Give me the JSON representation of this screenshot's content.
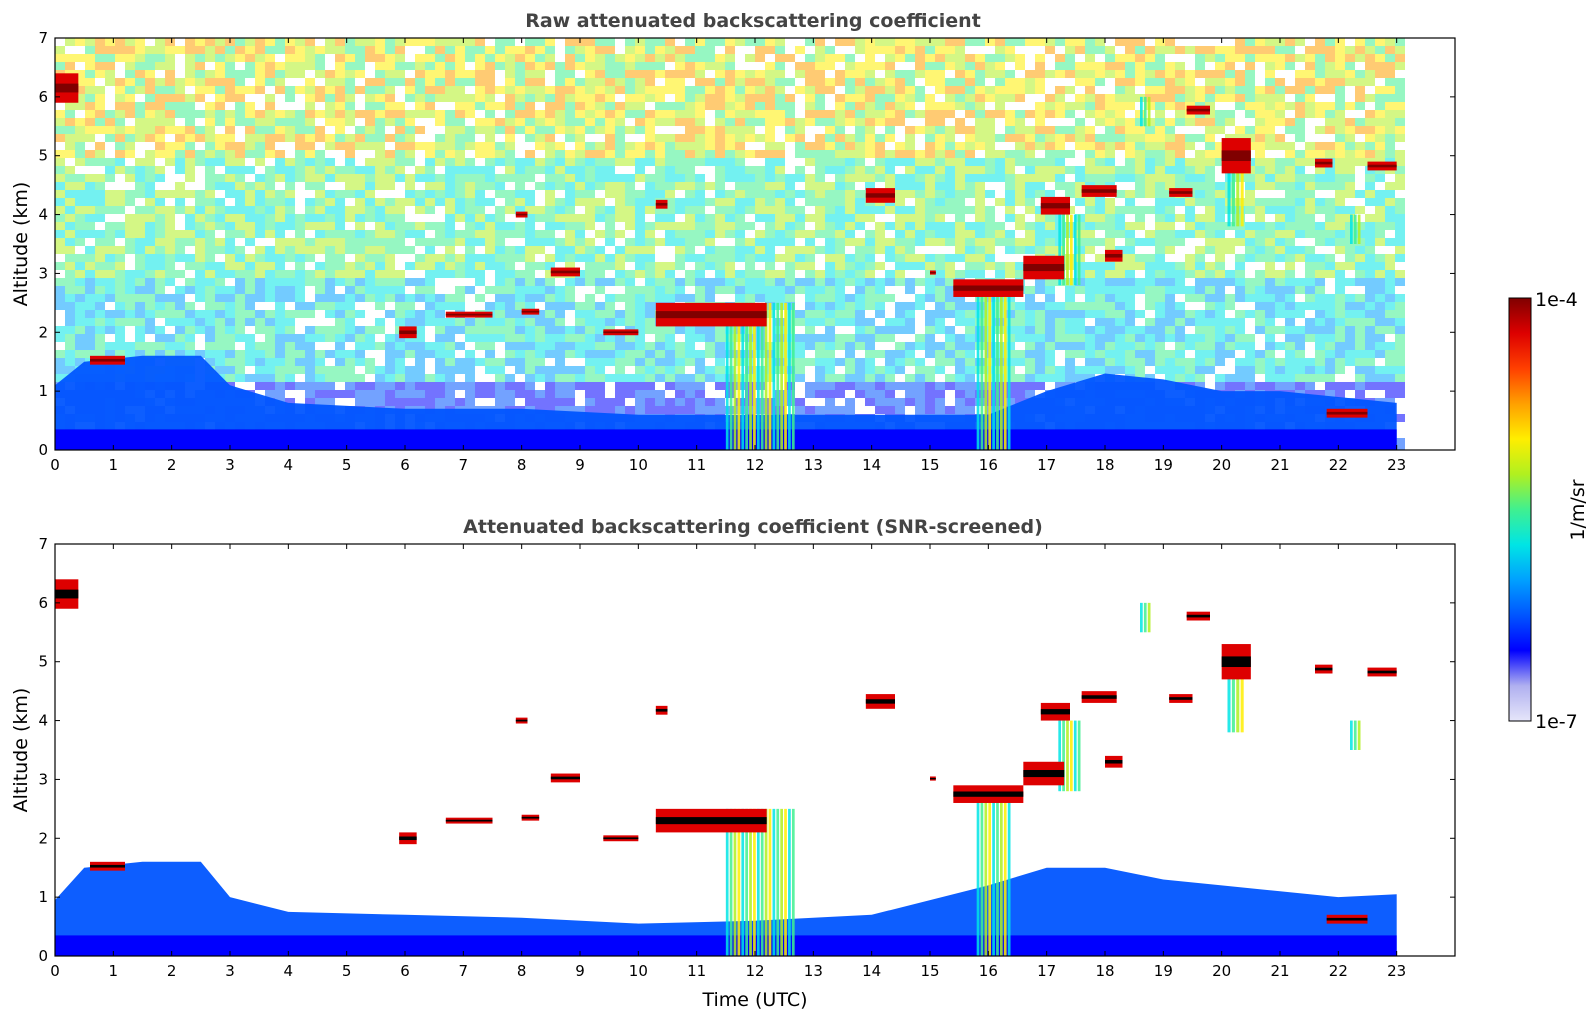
{
  "colors": {
    "colormap": [
      "#e6e6fa",
      "#b0b0f0",
      "#0000ff",
      "#0055ff",
      "#00a0ff",
      "#00e5e5",
      "#40f090",
      "#b0f020",
      "#ffee00",
      "#ffa000",
      "#ff4000",
      "#dd0000",
      "#800000"
    ],
    "background": "#ffffff",
    "frame": "#000000",
    "title": "#444444"
  },
  "colorbar": {
    "max_label": "1e-4",
    "min_label": "1e-7",
    "unit_label": "1/m/sr",
    "scale": "log"
  },
  "chart_data": [
    {
      "type": "heatmap",
      "title": "Raw attenuated backscattering coefficient",
      "xlabel": "",
      "ylabel": "Altitude (km)",
      "xlim": [
        0,
        24
      ],
      "ylim": [
        0,
        7
      ],
      "xticks": [
        "0",
        "1",
        "2",
        "3",
        "4",
        "5",
        "6",
        "7",
        "8",
        "9",
        "10",
        "11",
        "12",
        "13",
        "14",
        "15",
        "16",
        "17",
        "18",
        "19",
        "20",
        "21",
        "22",
        "23"
      ],
      "yticks": [
        "0",
        "1",
        "2",
        "3",
        "4",
        "5",
        "6",
        "7"
      ],
      "data_x_range": [
        0,
        23
      ],
      "screened": false,
      "boundary_layer_top": [
        [
          0,
          1.1
        ],
        [
          0.5,
          1.5
        ],
        [
          1.5,
          1.6
        ],
        [
          2.5,
          1.6
        ],
        [
          3,
          1.1
        ],
        [
          4,
          0.8
        ],
        [
          6,
          0.7
        ],
        [
          8,
          0.7
        ],
        [
          10,
          0.6
        ],
        [
          12,
          0.6
        ],
        [
          14,
          0.6
        ],
        [
          16,
          0.6
        ],
        [
          17,
          1.0
        ],
        [
          18,
          1.3
        ],
        [
          19,
          1.2
        ],
        [
          20,
          1.0
        ],
        [
          21,
          1.0
        ],
        [
          22,
          0.9
        ],
        [
          23,
          0.8
        ]
      ],
      "cloud_layers": [
        {
          "x": [
            0.0,
            0.4
          ],
          "y": [
            5.9,
            6.4
          ]
        },
        {
          "x": [
            0.6,
            1.2
          ],
          "y": [
            1.45,
            1.6
          ]
        },
        {
          "x": [
            5.9,
            6.2
          ],
          "y": [
            1.9,
            2.1
          ]
        },
        {
          "x": [
            6.7,
            7.5
          ],
          "y": [
            2.25,
            2.35
          ]
        },
        {
          "x": [
            8.0,
            8.3
          ],
          "y": [
            2.3,
            2.4
          ]
        },
        {
          "x": [
            7.9,
            8.1
          ],
          "y": [
            3.95,
            4.05
          ]
        },
        {
          "x": [
            8.5,
            9.0
          ],
          "y": [
            2.95,
            3.1
          ]
        },
        {
          "x": [
            9.4,
            10.0
          ],
          "y": [
            1.95,
            2.05
          ]
        },
        {
          "x": [
            10.3,
            10.5
          ],
          "y": [
            4.1,
            4.25
          ]
        },
        {
          "x": [
            10.3,
            12.2
          ],
          "y": [
            2.1,
            2.5
          ]
        },
        {
          "x": [
            13.9,
            14.4
          ],
          "y": [
            4.2,
            4.45
          ]
        },
        {
          "x": [
            15.0,
            15.1
          ],
          "y": [
            2.98,
            3.05
          ]
        },
        {
          "x": [
            15.4,
            16.6
          ],
          "y": [
            2.6,
            2.9
          ]
        },
        {
          "x": [
            16.6,
            17.3
          ],
          "y": [
            2.9,
            3.3
          ]
        },
        {
          "x": [
            16.9,
            17.4
          ],
          "y": [
            4.0,
            4.3
          ]
        },
        {
          "x": [
            17.6,
            18.2
          ],
          "y": [
            4.3,
            4.5
          ]
        },
        {
          "x": [
            18.0,
            18.3
          ],
          "y": [
            3.2,
            3.4
          ]
        },
        {
          "x": [
            19.1,
            19.5
          ],
          "y": [
            4.3,
            4.45
          ]
        },
        {
          "x": [
            19.4,
            19.8
          ],
          "y": [
            5.7,
            5.85
          ]
        },
        {
          "x": [
            20.0,
            20.5
          ],
          "y": [
            4.7,
            5.3
          ]
        },
        {
          "x": [
            21.6,
            21.9
          ],
          "y": [
            4.8,
            4.95
          ]
        },
        {
          "x": [
            22.5,
            23.0
          ],
          "y": [
            4.75,
            4.9
          ]
        },
        {
          "x": [
            21.8,
            22.5
          ],
          "y": [
            0.55,
            0.7
          ]
        }
      ],
      "fall_streaks": [
        {
          "x": [
            11.5,
            12.7
          ],
          "y": [
            0,
            2.5
          ]
        },
        {
          "x": [
            15.8,
            16.4
          ],
          "y": [
            0,
            2.8
          ]
        },
        {
          "x": [
            17.2,
            17.6
          ],
          "y": [
            2.8,
            4.0
          ]
        },
        {
          "x": [
            20.1,
            20.4
          ],
          "y": [
            3.8,
            4.8
          ]
        },
        {
          "x": [
            22.2,
            22.4
          ],
          "y": [
            3.5,
            4.0
          ]
        },
        {
          "x": [
            18.6,
            18.8
          ],
          "y": [
            5.5,
            6.0
          ]
        }
      ]
    },
    {
      "type": "heatmap",
      "title": "Attenuated backscattering coefficient (SNR-screened)",
      "xlabel": "Time (UTC)",
      "ylabel": "Altitude (km)",
      "xlim": [
        0,
        24
      ],
      "ylim": [
        0,
        7
      ],
      "xticks": [
        "0",
        "1",
        "2",
        "3",
        "4",
        "5",
        "6",
        "7",
        "8",
        "9",
        "10",
        "11",
        "12",
        "13",
        "14",
        "15",
        "16",
        "17",
        "18",
        "19",
        "20",
        "21",
        "22",
        "23"
      ],
      "yticks": [
        "0",
        "1",
        "2",
        "3",
        "4",
        "5",
        "6",
        "7"
      ],
      "data_x_range": [
        0,
        23
      ],
      "screened": true,
      "boundary_layer_top": [
        [
          0,
          0.95
        ],
        [
          0.5,
          1.5
        ],
        [
          1.5,
          1.6
        ],
        [
          2.5,
          1.6
        ],
        [
          3,
          1.0
        ],
        [
          4,
          0.75
        ],
        [
          6,
          0.7
        ],
        [
          8,
          0.65
        ],
        [
          10,
          0.55
        ],
        [
          12,
          0.6
        ],
        [
          14,
          0.7
        ],
        [
          16,
          1.2
        ],
        [
          17,
          1.5
        ],
        [
          18,
          1.5
        ],
        [
          19,
          1.3
        ],
        [
          20,
          1.2
        ],
        [
          21,
          1.1
        ],
        [
          22,
          1.0
        ],
        [
          23,
          1.05
        ]
      ],
      "cloud_layers": [
        {
          "x": [
            0.0,
            0.4
          ],
          "y": [
            5.9,
            6.4
          ]
        },
        {
          "x": [
            0.6,
            1.2
          ],
          "y": [
            1.45,
            1.6
          ]
        },
        {
          "x": [
            5.9,
            6.2
          ],
          "y": [
            1.9,
            2.1
          ]
        },
        {
          "x": [
            6.7,
            7.5
          ],
          "y": [
            2.25,
            2.35
          ]
        },
        {
          "x": [
            8.0,
            8.3
          ],
          "y": [
            2.3,
            2.4
          ]
        },
        {
          "x": [
            7.9,
            8.1
          ],
          "y": [
            3.95,
            4.05
          ]
        },
        {
          "x": [
            8.5,
            9.0
          ],
          "y": [
            2.95,
            3.1
          ]
        },
        {
          "x": [
            9.4,
            10.0
          ],
          "y": [
            1.95,
            2.05
          ]
        },
        {
          "x": [
            10.3,
            10.5
          ],
          "y": [
            4.1,
            4.25
          ]
        },
        {
          "x": [
            10.3,
            12.2
          ],
          "y": [
            2.1,
            2.5
          ]
        },
        {
          "x": [
            13.9,
            14.4
          ],
          "y": [
            4.2,
            4.45
          ]
        },
        {
          "x": [
            15.0,
            15.1
          ],
          "y": [
            2.98,
            3.05
          ]
        },
        {
          "x": [
            15.4,
            16.6
          ],
          "y": [
            2.6,
            2.9
          ]
        },
        {
          "x": [
            16.6,
            17.3
          ],
          "y": [
            2.9,
            3.3
          ]
        },
        {
          "x": [
            16.9,
            17.4
          ],
          "y": [
            4.0,
            4.3
          ]
        },
        {
          "x": [
            17.6,
            18.2
          ],
          "y": [
            4.3,
            4.5
          ]
        },
        {
          "x": [
            18.0,
            18.3
          ],
          "y": [
            3.2,
            3.4
          ]
        },
        {
          "x": [
            19.1,
            19.5
          ],
          "y": [
            4.3,
            4.45
          ]
        },
        {
          "x": [
            19.4,
            19.8
          ],
          "y": [
            5.7,
            5.85
          ]
        },
        {
          "x": [
            20.0,
            20.5
          ],
          "y": [
            4.7,
            5.3
          ]
        },
        {
          "x": [
            21.6,
            21.9
          ],
          "y": [
            4.8,
            4.95
          ]
        },
        {
          "x": [
            22.5,
            23.0
          ],
          "y": [
            4.75,
            4.9
          ]
        },
        {
          "x": [
            21.8,
            22.5
          ],
          "y": [
            0.55,
            0.7
          ]
        }
      ],
      "fall_streaks": [
        {
          "x": [
            11.5,
            12.7
          ],
          "y": [
            0,
            2.5
          ]
        },
        {
          "x": [
            15.8,
            16.4
          ],
          "y": [
            0,
            2.8
          ]
        },
        {
          "x": [
            17.2,
            17.6
          ],
          "y": [
            2.8,
            4.0
          ]
        },
        {
          "x": [
            20.1,
            20.4
          ],
          "y": [
            3.8,
            4.8
          ]
        },
        {
          "x": [
            22.2,
            22.4
          ],
          "y": [
            3.5,
            4.0
          ]
        },
        {
          "x": [
            18.6,
            18.8
          ],
          "y": [
            5.5,
            6.0
          ]
        }
      ]
    }
  ]
}
